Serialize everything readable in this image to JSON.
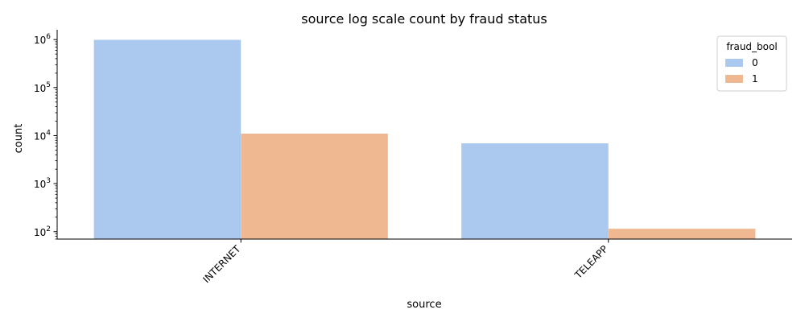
{
  "chart_data": {
    "type": "bar",
    "title": "source log scale count by fraud status",
    "xlabel": "source",
    "ylabel": "count",
    "yscale": "log",
    "ylim": [
      70,
      1600000
    ],
    "categories": [
      "INTERNET",
      "TELEAPP"
    ],
    "y_ticks": [
      {
        "value": 100,
        "base": "10",
        "exp": "2"
      },
      {
        "value": 1000,
        "base": "10",
        "exp": "3"
      },
      {
        "value": 10000,
        "base": "10",
        "exp": "4"
      },
      {
        "value": 100000,
        "base": "10",
        "exp": "5"
      },
      {
        "value": 1000000,
        "base": "10",
        "exp": "6"
      }
    ],
    "x_tick_rotation_deg": -45,
    "legend": {
      "title": "fraud_bool",
      "position": "top-right"
    },
    "series": [
      {
        "name": "0",
        "color": "#abc9ee",
        "values": [
          988000,
          6900
        ]
      },
      {
        "name": "1",
        "color": "#f0b891",
        "values": [
          11000,
          115
        ]
      }
    ],
    "grid": false
  }
}
